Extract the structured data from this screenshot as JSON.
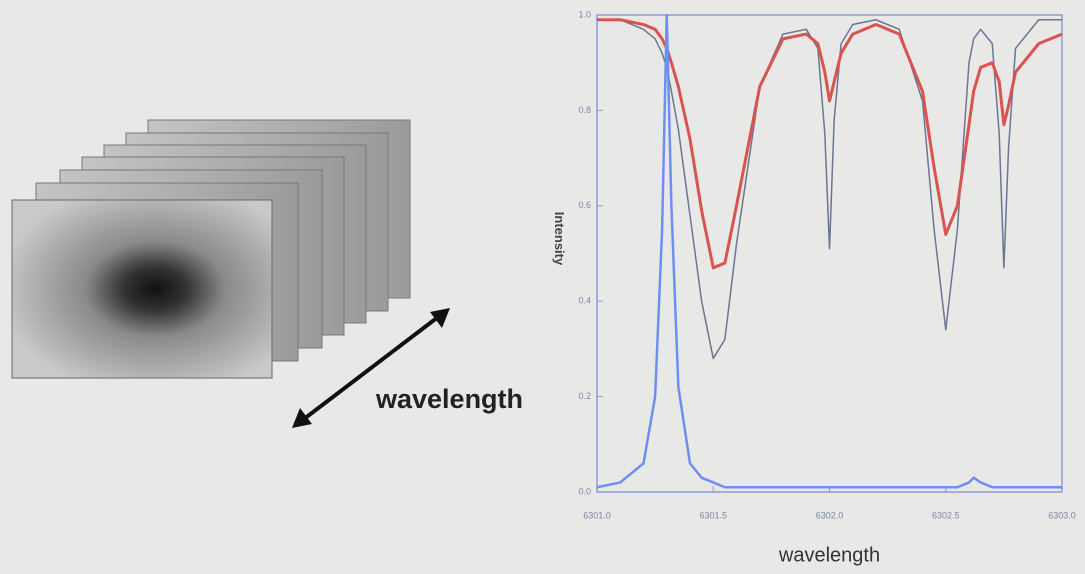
{
  "diagram_label": "wavelength",
  "chart_data": {
    "type": "line",
    "xlabel": "wavelength",
    "ylabel": "Intensity",
    "x": [
      6301.0,
      6301.1,
      6301.2,
      6301.25,
      6301.28,
      6301.3,
      6301.32,
      6301.35,
      6301.4,
      6301.45,
      6301.5,
      6301.55,
      6301.6,
      6301.7,
      6301.8,
      6301.9,
      6301.95,
      6301.98,
      6302.0,
      6302.02,
      6302.05,
      6302.1,
      6302.2,
      6302.3,
      6302.4,
      6302.45,
      6302.5,
      6302.55,
      6302.6,
      6302.62,
      6302.65,
      6302.7,
      6302.73,
      6302.75,
      6302.77,
      6302.8,
      6302.9,
      6303.0
    ],
    "series": [
      {
        "color": "#6b7594",
        "width": 1.5,
        "values": [
          0.99,
          0.99,
          0.97,
          0.95,
          0.92,
          0.89,
          0.84,
          0.76,
          0.58,
          0.4,
          0.28,
          0.32,
          0.52,
          0.85,
          0.96,
          0.97,
          0.93,
          0.75,
          0.51,
          0.78,
          0.94,
          0.98,
          0.99,
          0.97,
          0.82,
          0.55,
          0.34,
          0.55,
          0.9,
          0.95,
          0.97,
          0.94,
          0.75,
          0.47,
          0.72,
          0.93,
          0.99,
          0.99
        ]
      },
      {
        "color": "#d9534f",
        "width": 3,
        "values": [
          0.99,
          0.99,
          0.98,
          0.97,
          0.95,
          0.93,
          0.9,
          0.85,
          0.74,
          0.59,
          0.47,
          0.48,
          0.6,
          0.85,
          0.95,
          0.96,
          0.94,
          0.88,
          0.82,
          0.86,
          0.92,
          0.96,
          0.98,
          0.96,
          0.84,
          0.68,
          0.54,
          0.6,
          0.77,
          0.84,
          0.89,
          0.9,
          0.86,
          0.77,
          0.81,
          0.88,
          0.94,
          0.96
        ]
      },
      {
        "color": "#6f8ff0",
        "width": 2.5,
        "values": [
          0.01,
          0.02,
          0.06,
          0.2,
          0.55,
          1.0,
          0.6,
          0.22,
          0.06,
          0.03,
          0.02,
          0.01,
          0.01,
          0.01,
          0.01,
          0.01,
          0.01,
          0.01,
          0.01,
          0.01,
          0.01,
          0.01,
          0.01,
          0.01,
          0.01,
          0.01,
          0.01,
          0.01,
          0.02,
          0.03,
          0.02,
          0.01,
          0.01,
          0.01,
          0.01,
          0.01,
          0.01,
          0.01
        ]
      }
    ],
    "xlim": [
      6301.0,
      6303.0
    ],
    "xticks": [
      {
        "value": 6301.0,
        "label": "6301.0"
      },
      6301.5,
      {
        "value": 6302.0,
        "label": "6302.0"
      },
      6302.5,
      {
        "value": 6303.0,
        "label": "6303.0"
      }
    ],
    "ylim": [
      0,
      1
    ],
    "yticks": [
      {
        "value": 0,
        "label": "0.0"
      },
      0.2,
      0.4,
      0.6,
      0.8,
      {
        "value": 1,
        "label": "1.0"
      }
    ]
  }
}
